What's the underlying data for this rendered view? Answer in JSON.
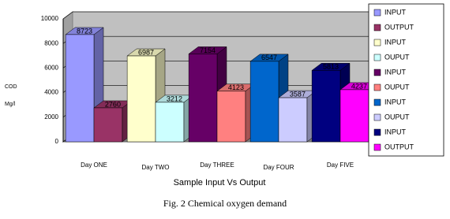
{
  "chart_data": {
    "type": "bar3d",
    "caption": "Fig. 2 Chemical oxygen demand",
    "x_label": "Sample Input Vs Output",
    "y_label": [
      "COD",
      "Mg/l"
    ],
    "categories": [
      "Day ONE",
      "Day TWO",
      "Day THREE",
      "Day FOUR",
      "Day FIVE"
    ],
    "series": [
      {
        "name": "INPUT",
        "color": "#9999ff",
        "values": [
          8723,
          null,
          null,
          null,
          null
        ]
      },
      {
        "name": "OUTPUT",
        "color": "#993366",
        "values": [
          2760,
          null,
          null,
          null,
          null
        ]
      },
      {
        "name": "INPUT",
        "color": "#ffffcc",
        "values": [
          null,
          6987,
          null,
          null,
          null
        ]
      },
      {
        "name": "OUPUT",
        "color": "#ccffff",
        "values": [
          null,
          3212,
          null,
          null,
          null
        ]
      },
      {
        "name": "INPUT",
        "color": "#660066",
        "values": [
          null,
          null,
          7154,
          null,
          null
        ]
      },
      {
        "name": "OUPUT",
        "color": "#ff8080",
        "values": [
          null,
          null,
          4123,
          null,
          null
        ]
      },
      {
        "name": "INPUT",
        "color": "#0066cc",
        "values": [
          null,
          null,
          null,
          6547,
          null
        ]
      },
      {
        "name": "OUPUT",
        "color": "#ccccff",
        "values": [
          null,
          null,
          null,
          3587,
          null
        ]
      },
      {
        "name": "INPUT",
        "color": "#000080",
        "values": [
          null,
          null,
          null,
          null,
          5813
        ]
      },
      {
        "name": "OUTPUT",
        "color": "#ff00ff",
        "values": [
          null,
          null,
          null,
          null,
          4237
        ]
      }
    ],
    "ylim": [
      0,
      10000
    ],
    "yticks": [
      0,
      2000,
      4000,
      6000,
      8000,
      10000
    ],
    "grid": true
  }
}
